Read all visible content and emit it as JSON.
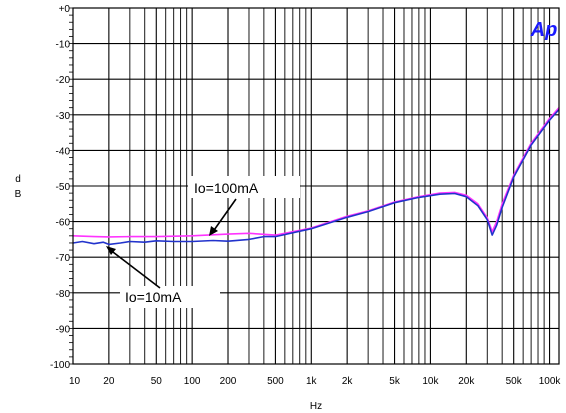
{
  "chart_data": {
    "type": "line",
    "title": "",
    "xlabel": "Hz",
    "ylabel_lines": [
      "d",
      "B"
    ],
    "x_scale": "log",
    "xlim": [
      10,
      120000
    ],
    "ylim": [
      -100,
      0
    ],
    "grid": true,
    "logo": "Ap",
    "x_ticks": [
      {
        "value": 10,
        "label": "10"
      },
      {
        "value": 20,
        "label": "20"
      },
      {
        "value": 50,
        "label": "50"
      },
      {
        "value": 100,
        "label": "100"
      },
      {
        "value": 200,
        "label": "200"
      },
      {
        "value": 500,
        "label": "500"
      },
      {
        "value": 1000,
        "label": "1k"
      },
      {
        "value": 2000,
        "label": "2k"
      },
      {
        "value": 5000,
        "label": "5k"
      },
      {
        "value": 10000,
        "label": "10k"
      },
      {
        "value": 20000,
        "label": "20k"
      },
      {
        "value": 50000,
        "label": "50k"
      },
      {
        "value": 100000,
        "label": "100k"
      }
    ],
    "y_ticks": [
      {
        "value": 0,
        "label": "+0"
      },
      {
        "value": -10,
        "label": "-10"
      },
      {
        "value": -20,
        "label": "-20"
      },
      {
        "value": -30,
        "label": "-30"
      },
      {
        "value": -40,
        "label": "-40"
      },
      {
        "value": -50,
        "label": "-50"
      },
      {
        "value": -60,
        "label": "-60"
      },
      {
        "value": -70,
        "label": "-70"
      },
      {
        "value": -80,
        "label": "-80"
      },
      {
        "value": -90,
        "label": "-90"
      },
      {
        "value": -100,
        "label": "-100"
      }
    ],
    "series": [
      {
        "name": "Io=100mA",
        "color": "#ff33ff",
        "x": [
          10,
          15,
          20,
          30,
          50,
          100,
          200,
          300,
          500,
          1000,
          2000,
          3000,
          5000,
          8000,
          12000,
          16000,
          20000,
          25000,
          30000,
          33000,
          36000,
          40000,
          50000,
          70000,
          100000,
          120000
        ],
        "y": [
          -64,
          -64.2,
          -64.3,
          -64.2,
          -64.2,
          -64,
          -63.5,
          -63.3,
          -63.8,
          -61.8,
          -58.5,
          -57,
          -54.5,
          -53,
          -52,
          -51.8,
          -52.6,
          -55,
          -59,
          -62.8,
          -60,
          -55,
          -47,
          -38,
          -31,
          -28
        ]
      },
      {
        "name": "Io=10mA",
        "color": "#2233cc",
        "x": [
          10,
          12,
          15,
          18,
          20,
          25,
          30,
          40,
          50,
          70,
          100,
          150,
          200,
          300,
          400,
          500,
          1000,
          2000,
          3000,
          5000,
          8000,
          12000,
          16000,
          20000,
          25000,
          30000,
          33000,
          36000,
          40000,
          50000,
          70000,
          100000,
          120000
        ],
        "y": [
          -66,
          -65.6,
          -66.2,
          -65.8,
          -66.4,
          -66,
          -65.6,
          -65.8,
          -65.4,
          -65.6,
          -65.6,
          -65.3,
          -65.5,
          -65,
          -64.2,
          -64.2,
          -62,
          -58.8,
          -57.2,
          -54.7,
          -53.2,
          -52.3,
          -52.1,
          -53,
          -55.5,
          -59.5,
          -63.8,
          -61,
          -56,
          -47.5,
          -38.5,
          -31.5,
          -28.5
        ]
      }
    ],
    "annotations": [
      {
        "text": "Io=100mA",
        "target_x": 130,
        "target_y": -64
      },
      {
        "text": "Io=10mA",
        "target_x": 20,
        "target_y": -66
      }
    ]
  }
}
